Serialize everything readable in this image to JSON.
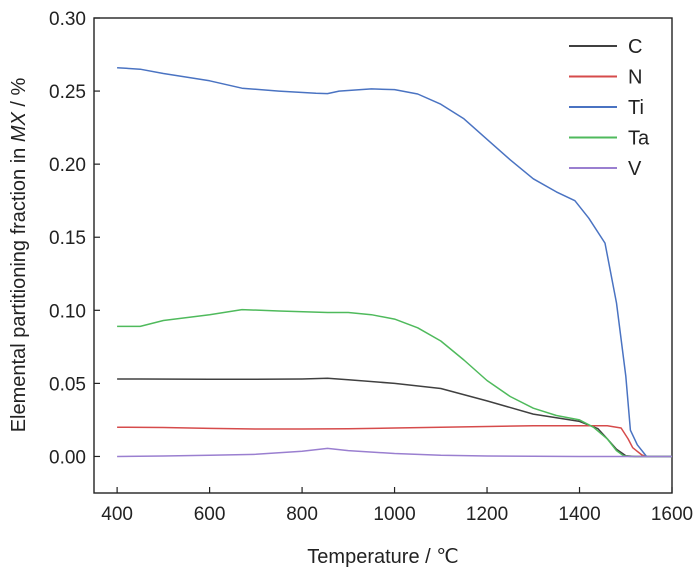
{
  "chart_data": {
    "type": "line",
    "xlabel": "Temperature / ℃",
    "ylabel_parts": {
      "prefix": "Elemental partitioning fraction in ",
      "italic": "MX",
      "suffix": " / %"
    },
    "xlim": [
      350,
      1600
    ],
    "ylim": [
      -0.025,
      0.3
    ],
    "xticks": [
      400,
      600,
      800,
      1000,
      1200,
      1400,
      1600
    ],
    "xtick_labels": [
      "400",
      "600",
      "800",
      "1000",
      "1200",
      "1400",
      "1600"
    ],
    "yticks": [
      0.0,
      0.05,
      0.1,
      0.15,
      0.2,
      0.25,
      0.3
    ],
    "ytick_labels": [
      "0.00",
      "0.05",
      "0.10",
      "0.15",
      "0.20",
      "0.25",
      "0.30"
    ],
    "grid": false,
    "legend_position": "top-right",
    "series": [
      {
        "name": "C",
        "color": "#404040",
        "points": [
          [
            400,
            0.053
          ],
          [
            450,
            0.053
          ],
          [
            600,
            0.0528
          ],
          [
            700,
            0.0528
          ],
          [
            800,
            0.053
          ],
          [
            855,
            0.0535
          ],
          [
            900,
            0.0525
          ],
          [
            1000,
            0.05
          ],
          [
            1100,
            0.0465
          ],
          [
            1200,
            0.038
          ],
          [
            1300,
            0.029
          ],
          [
            1400,
            0.024
          ],
          [
            1440,
            0.019
          ],
          [
            1460,
            0.012
          ],
          [
            1480,
            0.005
          ],
          [
            1500,
            0.0005
          ],
          [
            1520,
            0
          ],
          [
            1600,
            0
          ]
        ]
      },
      {
        "name": "N",
        "color": "#d64b4b",
        "points": [
          [
            400,
            0.02
          ],
          [
            500,
            0.0198
          ],
          [
            600,
            0.0192
          ],
          [
            700,
            0.0188
          ],
          [
            800,
            0.0188
          ],
          [
            900,
            0.019
          ],
          [
            1000,
            0.0195
          ],
          [
            1100,
            0.02
          ],
          [
            1200,
            0.0205
          ],
          [
            1300,
            0.021
          ],
          [
            1400,
            0.021
          ],
          [
            1460,
            0.021
          ],
          [
            1490,
            0.0195
          ],
          [
            1505,
            0.012
          ],
          [
            1515,
            0.006
          ],
          [
            1535,
            0.001
          ],
          [
            1545,
            0
          ],
          [
            1600,
            0
          ]
        ]
      },
      {
        "name": "Ti",
        "color": "#4a73c2",
        "points": [
          [
            400,
            0.266
          ],
          [
            450,
            0.265
          ],
          [
            500,
            0.262
          ],
          [
            600,
            0.257
          ],
          [
            670,
            0.252
          ],
          [
            750,
            0.25
          ],
          [
            830,
            0.2485
          ],
          [
            855,
            0.2483
          ],
          [
            880,
            0.25
          ],
          [
            950,
            0.2515
          ],
          [
            1000,
            0.251
          ],
          [
            1050,
            0.248
          ],
          [
            1100,
            0.241
          ],
          [
            1150,
            0.231
          ],
          [
            1200,
            0.217
          ],
          [
            1250,
            0.203
          ],
          [
            1300,
            0.19
          ],
          [
            1350,
            0.181
          ],
          [
            1390,
            0.175
          ],
          [
            1420,
            0.163
          ],
          [
            1455,
            0.146
          ],
          [
            1480,
            0.105
          ],
          [
            1500,
            0.055
          ],
          [
            1510,
            0.018
          ],
          [
            1525,
            0.008
          ],
          [
            1545,
            0
          ],
          [
            1600,
            0
          ]
        ]
      },
      {
        "name": "Ta",
        "color": "#4fba5c",
        "points": [
          [
            400,
            0.089
          ],
          [
            450,
            0.089
          ],
          [
            500,
            0.093
          ],
          [
            600,
            0.097
          ],
          [
            670,
            0.1005
          ],
          [
            750,
            0.0995
          ],
          [
            855,
            0.0985
          ],
          [
            900,
            0.0985
          ],
          [
            950,
            0.097
          ],
          [
            1000,
            0.094
          ],
          [
            1050,
            0.088
          ],
          [
            1100,
            0.079
          ],
          [
            1150,
            0.066
          ],
          [
            1200,
            0.052
          ],
          [
            1250,
            0.041
          ],
          [
            1300,
            0.033
          ],
          [
            1350,
            0.028
          ],
          [
            1400,
            0.025
          ],
          [
            1430,
            0.02
          ],
          [
            1460,
            0.012
          ],
          [
            1480,
            0.004
          ],
          [
            1495,
            0.0005
          ],
          [
            1510,
            0
          ],
          [
            1600,
            0
          ]
        ]
      },
      {
        "name": "V",
        "color": "#9a7fd0",
        "points": [
          [
            400,
            0
          ],
          [
            500,
            0.0003
          ],
          [
            600,
            0.0008
          ],
          [
            700,
            0.0015
          ],
          [
            800,
            0.0035
          ],
          [
            855,
            0.0055
          ],
          [
            900,
            0.004
          ],
          [
            1000,
            0.002
          ],
          [
            1100,
            0.0008
          ],
          [
            1200,
            0.0003
          ],
          [
            1300,
            0.0001
          ],
          [
            1400,
            0
          ],
          [
            1600,
            0
          ]
        ]
      }
    ]
  }
}
